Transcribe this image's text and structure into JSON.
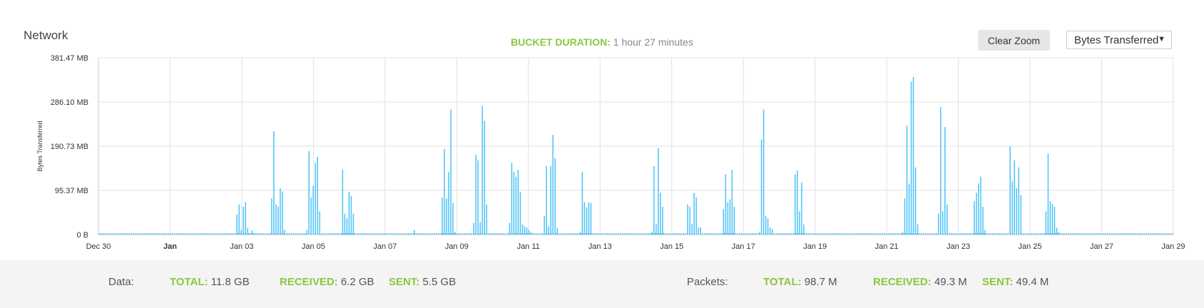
{
  "header": {
    "title": "Network",
    "bucket_label": "BUCKET DURATION:",
    "bucket_value": "1 hour 27 minutes",
    "clear_zoom": "Clear Zoom",
    "metric_select": "Bytes Transferred"
  },
  "chart_data": {
    "type": "bar",
    "ylabel": "Bytes Transferred",
    "ylim": [
      0,
      381.47
    ],
    "yunit": "MB",
    "yticks": [
      "0 B",
      "95.37 MB",
      "190.73 MB",
      "286.10 MB",
      "381.47 MB"
    ],
    "xticks": [
      "Dec 30",
      "Jan",
      "Jan 03",
      "Jan 05",
      "Jan 07",
      "Jan 09",
      "Jan 11",
      "Jan 13",
      "Jan 15",
      "Jan 17",
      "Jan 19",
      "Jan 21",
      "Jan 23",
      "Jan 25",
      "Jan 27",
      "Jan 29"
    ],
    "grid": true,
    "xstart_day": -2.0,
    "xend_day": 28.0,
    "bucket_days": 0.0604,
    "series": [
      {
        "color": "#4fc3f7",
        "points": [
          [
            1.85,
            43
          ],
          [
            1.91,
            65
          ],
          [
            1.97,
            10
          ],
          [
            2.03,
            60
          ],
          [
            2.09,
            70
          ],
          [
            2.15,
            15
          ],
          [
            2.21,
            3
          ],
          [
            2.27,
            9
          ],
          [
            2.33,
            3
          ],
          [
            2.82,
            78
          ],
          [
            2.88,
            223
          ],
          [
            2.94,
            65
          ],
          [
            3.0,
            60
          ],
          [
            3.06,
            100
          ],
          [
            3.12,
            93
          ],
          [
            3.18,
            10
          ],
          [
            3.8,
            10
          ],
          [
            3.86,
            180
          ],
          [
            3.92,
            80
          ],
          [
            3.98,
            105
          ],
          [
            4.04,
            155
          ],
          [
            4.1,
            168
          ],
          [
            4.16,
            50
          ],
          [
            4.8,
            140
          ],
          [
            4.86,
            45
          ],
          [
            4.92,
            35
          ],
          [
            4.98,
            92
          ],
          [
            5.04,
            83
          ],
          [
            5.1,
            45
          ],
          [
            6.8,
            10
          ],
          [
            7.58,
            80
          ],
          [
            7.64,
            185
          ],
          [
            7.7,
            78
          ],
          [
            7.76,
            135
          ],
          [
            7.82,
            270
          ],
          [
            7.88,
            68
          ],
          [
            7.94,
            5
          ],
          [
            8.46,
            25
          ],
          [
            8.52,
            172
          ],
          [
            8.58,
            160
          ],
          [
            8.64,
            27
          ],
          [
            8.7,
            278
          ],
          [
            8.76,
            245
          ],
          [
            8.82,
            65
          ],
          [
            9.46,
            25
          ],
          [
            9.52,
            155
          ],
          [
            9.58,
            135
          ],
          [
            9.64,
            125
          ],
          [
            9.7,
            140
          ],
          [
            9.76,
            92
          ],
          [
            9.82,
            22
          ],
          [
            9.88,
            18
          ],
          [
            9.94,
            15
          ],
          [
            10.0,
            10
          ],
          [
            10.06,
            5
          ],
          [
            10.43,
            40
          ],
          [
            10.49,
            148
          ],
          [
            10.55,
            18
          ],
          [
            10.61,
            148
          ],
          [
            10.67,
            215
          ],
          [
            10.73,
            165
          ],
          [
            10.79,
            15
          ],
          [
            11.43,
            5
          ],
          [
            11.49,
            135
          ],
          [
            11.55,
            70
          ],
          [
            11.61,
            58
          ],
          [
            11.67,
            70
          ],
          [
            11.73,
            68
          ],
          [
            13.43,
            5
          ],
          [
            13.49,
            148
          ],
          [
            13.55,
            22
          ],
          [
            13.61,
            187
          ],
          [
            13.67,
            90
          ],
          [
            13.73,
            60
          ],
          [
            14.43,
            65
          ],
          [
            14.49,
            60
          ],
          [
            14.55,
            23
          ],
          [
            14.61,
            90
          ],
          [
            14.67,
            80
          ],
          [
            14.73,
            15
          ],
          [
            14.79,
            15
          ],
          [
            15.43,
            55
          ],
          [
            15.49,
            130
          ],
          [
            15.55,
            70
          ],
          [
            15.61,
            76
          ],
          [
            15.67,
            140
          ],
          [
            15.73,
            60
          ],
          [
            16.43,
            5
          ],
          [
            16.49,
            205
          ],
          [
            16.55,
            270
          ],
          [
            16.61,
            40
          ],
          [
            16.67,
            35
          ],
          [
            16.73,
            15
          ],
          [
            16.79,
            12
          ],
          [
            17.43,
            130
          ],
          [
            17.49,
            138
          ],
          [
            17.55,
            50
          ],
          [
            17.61,
            112
          ],
          [
            17.67,
            22
          ],
          [
            20.43,
            5
          ],
          [
            20.49,
            78
          ],
          [
            20.55,
            235
          ],
          [
            20.61,
            110
          ],
          [
            20.67,
            330
          ],
          [
            20.73,
            340
          ],
          [
            20.79,
            145
          ],
          [
            20.85,
            22
          ],
          [
            21.43,
            45
          ],
          [
            21.49,
            275
          ],
          [
            21.55,
            50
          ],
          [
            21.61,
            232
          ],
          [
            21.67,
            65
          ],
          [
            22.43,
            72
          ],
          [
            22.49,
            90
          ],
          [
            22.55,
            110
          ],
          [
            22.61,
            125
          ],
          [
            22.67,
            60
          ],
          [
            22.73,
            10
          ],
          [
            23.43,
            190
          ],
          [
            23.49,
            115
          ],
          [
            23.55,
            160
          ],
          [
            23.61,
            100
          ],
          [
            23.67,
            145
          ],
          [
            23.73,
            85
          ],
          [
            24.43,
            50
          ],
          [
            24.49,
            175
          ],
          [
            24.55,
            72
          ],
          [
            24.61,
            66
          ],
          [
            24.67,
            60
          ],
          [
            24.73,
            15
          ],
          [
            24.79,
            5
          ]
        ]
      }
    ]
  },
  "footer": {
    "data_label": "Data:",
    "data_total_k": "TOTAL:",
    "data_total_v": "11.8 GB",
    "data_recv_k": "RECEIVED:",
    "data_recv_v": "6.2 GB",
    "data_sent_k": "SENT:",
    "data_sent_v": "5.5 GB",
    "pk_label": "Packets:",
    "pk_total_k": "TOTAL:",
    "pk_total_v": "98.7 M",
    "pk_recv_k": "RECEIVED:",
    "pk_recv_v": "49.3 M",
    "pk_sent_k": "SENT:",
    "pk_sent_v": "49.4 M"
  }
}
